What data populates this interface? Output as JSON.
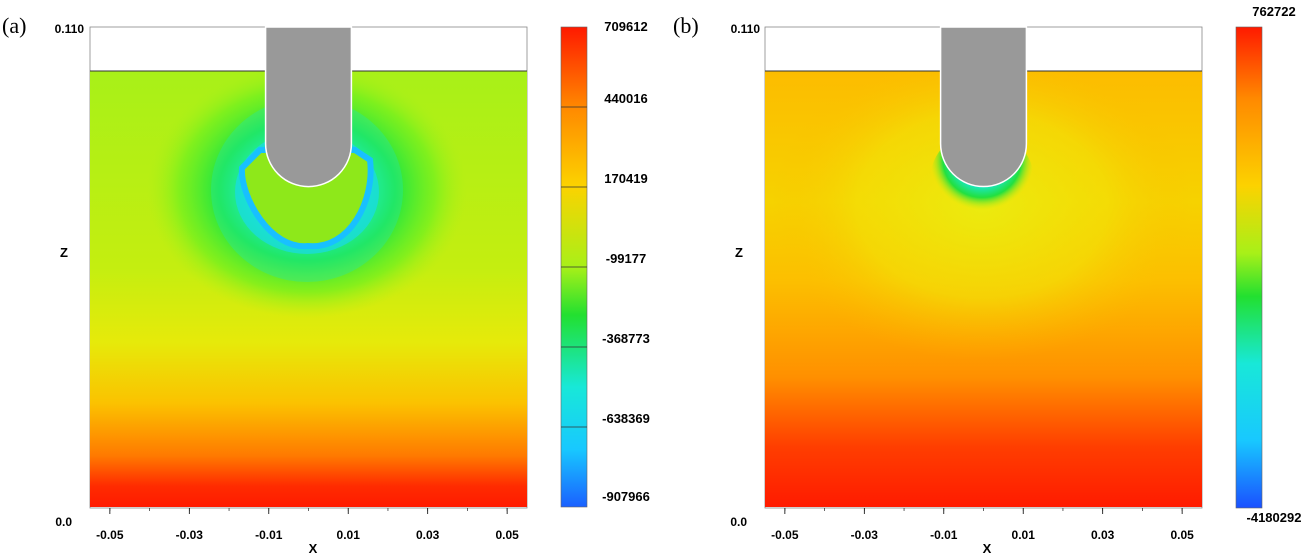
{
  "chart_data": [
    {
      "type": "heatmap",
      "panel_label": "(a)",
      "xlabel": "X",
      "ylabel": "Z",
      "xlim": [
        -0.055,
        0.055
      ],
      "ylim": [
        0.0,
        0.11
      ],
      "x_ticks": [
        "-0.05",
        "-0.03",
        "-0.01",
        "0.01",
        "0.03",
        "0.05"
      ],
      "y_tick_top": "0.110",
      "y_tick_bottom": "0.0",
      "surface_z": 0.1,
      "indenter": {
        "center_x": 0.0,
        "half_width": 0.0108,
        "tip_z": 0.0735
      },
      "colorbar": {
        "min": -907966,
        "max": 709612,
        "labels": [
          "709612",
          "440016",
          "170419",
          "-99177",
          "-368773",
          "-638369",
          "-907966"
        ]
      },
      "field_description": "low (green/cyan) ring around indenter tip, rising to red at bottom"
    },
    {
      "type": "heatmap",
      "panel_label": "(b)",
      "xlabel": "X",
      "ylabel": "Z",
      "xlim": [
        -0.055,
        0.055
      ],
      "ylim": [
        0.0,
        0.11
      ],
      "x_ticks": [
        "-0.05",
        "-0.03",
        "-0.01",
        "0.01",
        "0.03",
        "0.05"
      ],
      "y_tick_top": "0.110",
      "y_tick_bottom": "0.0",
      "surface_z": 0.1,
      "indenter": {
        "center_x": 0.0,
        "half_width": 0.0108,
        "tip_z": 0.0735
      },
      "colorbar": {
        "min": -4180292,
        "max": 762722,
        "labels": [
          "762722",
          "-4180292"
        ]
      },
      "field_description": "orange/yellow field, thin cyan-green layer at indenter tip, red at bottom"
    }
  ]
}
